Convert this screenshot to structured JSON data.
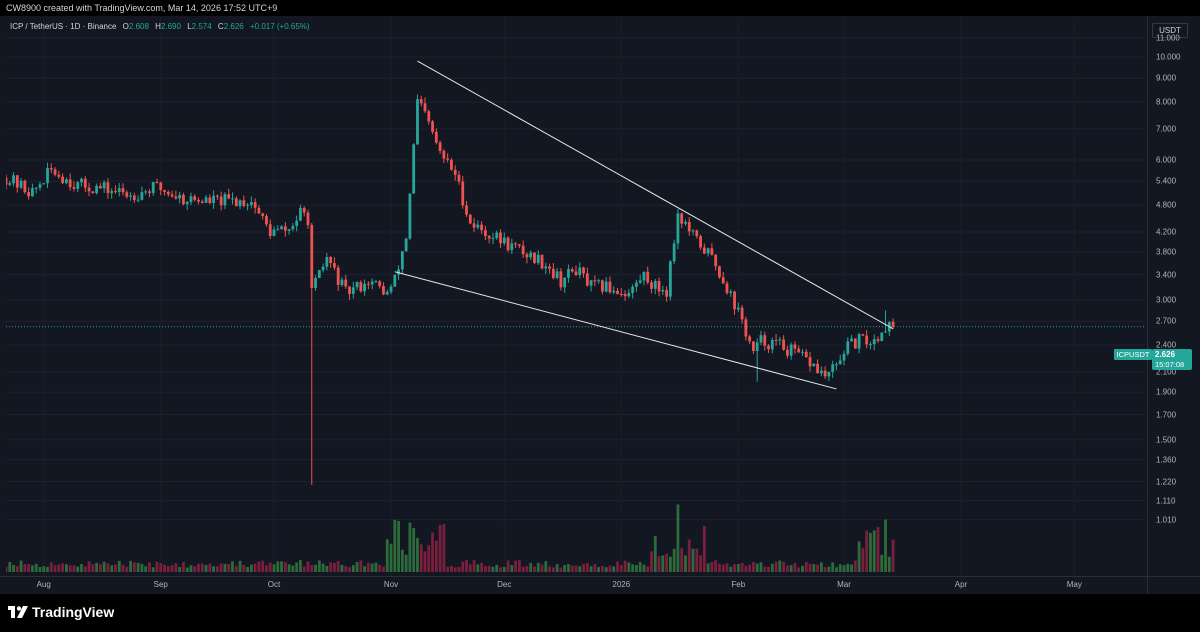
{
  "header": {
    "credit": "CW8900 created with TradingView.com, Mar 14, 2026 17:52 UTC+9"
  },
  "legend": {
    "symbol": "ICP / TetherUS · 1D · Binance",
    "open_label": "O",
    "open": "2.608",
    "high_label": "H",
    "high": "2.690",
    "low_label": "L",
    "low": "2.574",
    "close_label": "C",
    "close": "2.626",
    "change": "+0.017 (+0.65%)"
  },
  "price_axis": {
    "unit": "USDT",
    "ticks": [
      "11.000",
      "10.000",
      "9.000",
      "8.000",
      "7.000",
      "6.000",
      "5.400",
      "4.800",
      "4.200",
      "3.800",
      "3.400",
      "3.000",
      "2.700",
      "2.400",
      "2.100",
      "1.900",
      "1.700",
      "1.500",
      "1.360",
      "1.220",
      "1.110",
      "1.010"
    ],
    "last_symbol": "ICPUSDT",
    "last_price": "2.626",
    "countdown": "15:07:08"
  },
  "time_axis": {
    "ticks": [
      "Aug",
      "Sep",
      "Oct",
      "Nov",
      "Dec",
      "2026",
      "Feb",
      "Mar",
      "Apr",
      "May"
    ]
  },
  "colors": {
    "up": "#26a69a",
    "down": "#ef5350",
    "vol_up": "#2e6b3a",
    "vol_down": "#7a1f3d",
    "background": "#131722",
    "trendline": "#e6e6e6"
  },
  "footer": {
    "brand": "TradingView",
    "logo_icon": "tradingview-logo-icon"
  },
  "chart_data": {
    "type": "candlestick",
    "symbol": "ICP / TetherUS",
    "timeframe": "1D",
    "exchange": "Binance",
    "y_scale": "log",
    "ylim": [
      0.95,
      11.6
    ],
    "x_range": [
      "2025-07-22",
      "2026-05-20"
    ],
    "trendlines": [
      {
        "from": [
          "2025-11-08",
          9.8
        ],
        "to": [
          "2026-03-14",
          2.6
        ]
      },
      {
        "from": [
          "2025-11-02",
          3.45
        ],
        "to": [
          "2026-02-27",
          1.93
        ]
      }
    ],
    "anchors": [
      [
        "2025-07-22",
        5.5
      ],
      [
        "2025-07-29",
        5.1
      ],
      [
        "2025-08-03",
        5.7
      ],
      [
        "2025-08-10",
        5.3
      ],
      [
        "2025-08-17",
        5.2
      ],
      [
        "2025-08-24",
        5.05
      ],
      [
        "2025-08-31",
        5.25
      ],
      [
        "2025-09-07",
        4.95
      ],
      [
        "2025-09-14",
        4.9
      ],
      [
        "2025-09-21",
        4.9
      ],
      [
        "2025-09-25",
        4.9
      ],
      [
        "2025-09-30",
        4.2
      ],
      [
        "2025-10-05",
        4.25
      ],
      [
        "2025-10-08",
        4.6
      ],
      [
        "2025-10-10",
        4.5
      ],
      [
        "2025-10-11",
        3.1
      ],
      [
        "2025-10-15",
        3.7
      ],
      [
        "2025-10-20",
        3.1
      ],
      [
        "2025-10-26",
        3.3
      ],
      [
        "2025-10-31",
        3.1
      ],
      [
        "2025-11-02",
        3.3
      ],
      [
        "2025-11-05",
        4.1
      ],
      [
        "2025-11-08",
        8.0
      ],
      [
        "2025-11-10",
        7.5
      ],
      [
        "2025-11-14",
        6.2
      ],
      [
        "2025-11-18",
        5.6
      ],
      [
        "2025-11-22",
        4.4
      ],
      [
        "2025-11-26",
        4.2
      ],
      [
        "2025-12-01",
        4.0
      ],
      [
        "2025-12-06",
        3.8
      ],
      [
        "2025-12-12",
        3.6
      ],
      [
        "2025-12-16",
        3.3
      ],
      [
        "2025-12-20",
        3.5
      ],
      [
        "2025-12-24",
        3.2
      ],
      [
        "2025-12-28",
        3.2
      ],
      [
        "2026-01-03",
        3.1
      ],
      [
        "2026-01-07",
        3.4
      ],
      [
        "2026-01-10",
        3.2
      ],
      [
        "2026-01-13",
        3.15
      ],
      [
        "2026-01-16",
        4.6
      ],
      [
        "2026-01-20",
        4.1
      ],
      [
        "2026-01-25",
        3.7
      ],
      [
        "2026-01-29",
        3.2
      ],
      [
        "2026-02-02",
        2.7
      ],
      [
        "2026-02-05",
        2.3
      ],
      [
        "2026-02-07",
        2.45
      ],
      [
        "2026-02-12",
        2.4
      ],
      [
        "2026-02-16",
        2.3
      ],
      [
        "2026-02-20",
        2.2
      ],
      [
        "2026-02-24",
        2.05
      ],
      [
        "2026-02-27",
        2.15
      ],
      [
        "2026-03-01",
        2.35
      ],
      [
        "2026-03-05",
        2.45
      ],
      [
        "2026-03-09",
        2.45
      ],
      [
        "2026-03-12",
        2.65
      ],
      [
        "2026-03-14",
        2.626
      ]
    ],
    "wicks": [
      {
        "date": "2025-10-11",
        "low": 1.2
      },
      {
        "date": "2026-02-06",
        "low": 2.0
      },
      {
        "date": "2026-03-12",
        "high": 2.85
      }
    ],
    "volume_spikes": [
      {
        "date": "2025-11-07",
        "relative": 1.0
      },
      {
        "date": "2025-11-08",
        "relative": 0.75
      },
      {
        "date": "2026-01-16",
        "relative": 0.45
      },
      {
        "date": "2026-03-12",
        "relative": 0.35
      }
    ]
  }
}
